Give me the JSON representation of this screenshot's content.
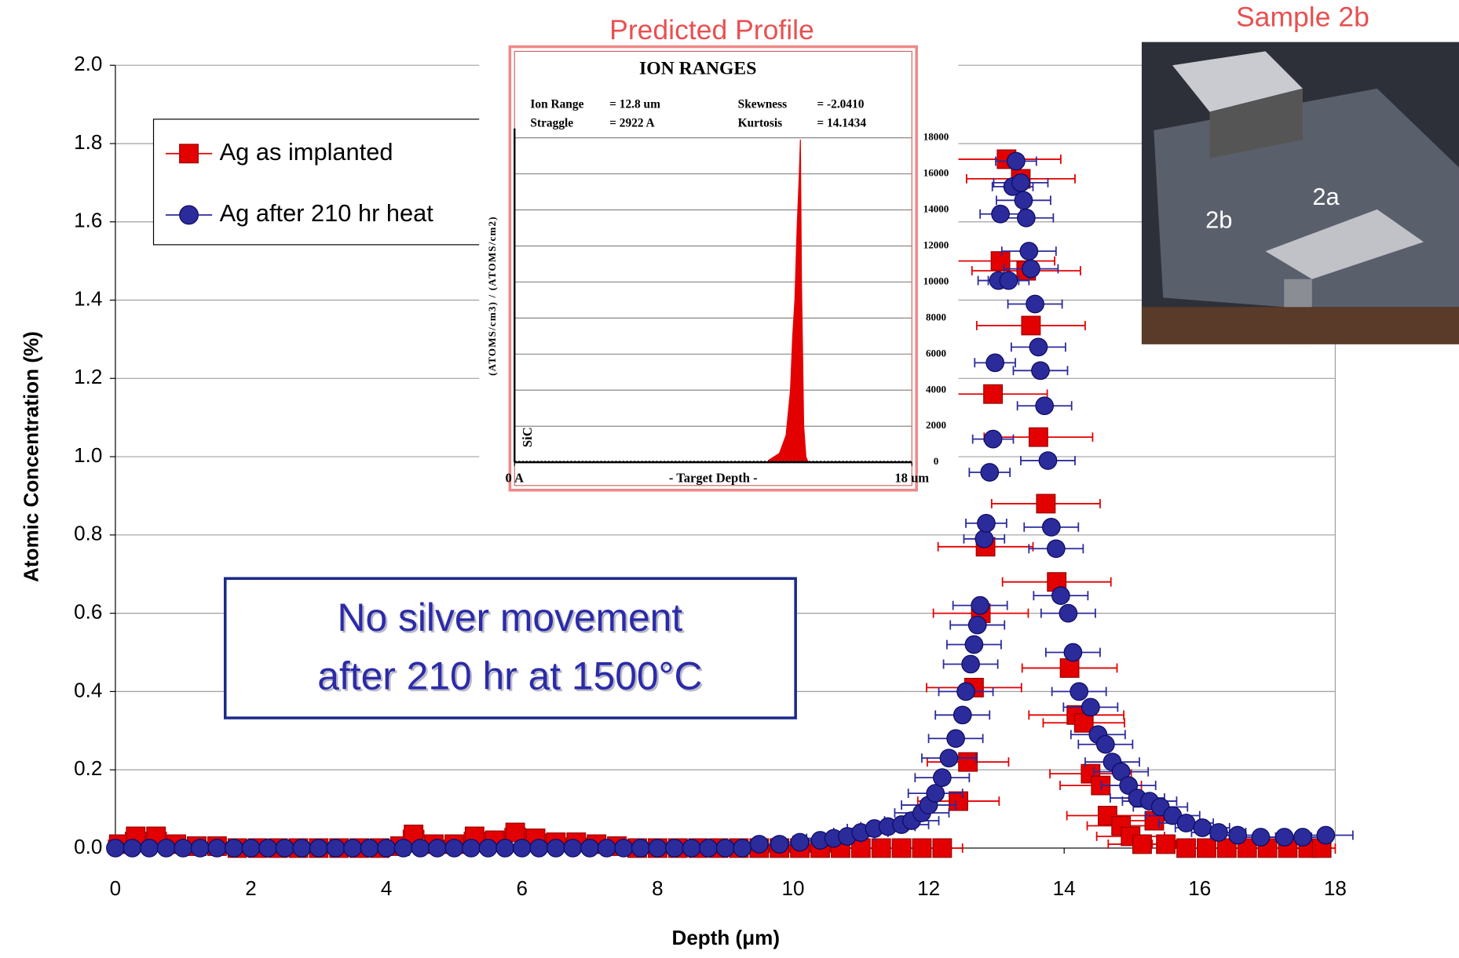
{
  "chart_data": [
    {
      "type": "scatter",
      "xlabel": "Depth (μm)",
      "ylabel": "Atomic Concentration (%)",
      "annotation": [
        "No silver movement",
        "after 210 hr at 1500°C"
      ],
      "xlim": [
        0,
        18
      ],
      "ylim": [
        0,
        2
      ],
      "xticks": [
        0,
        2,
        4,
        6,
        8,
        10,
        12,
        14,
        16,
        18
      ],
      "yticks": [
        {
          "value": 0,
          "label": "0.0"
        },
        {
          "value": 0.2,
          "label": "0.2"
        },
        {
          "value": 0.4,
          "label": "0.4"
        },
        {
          "value": 0.6,
          "label": "0.6"
        },
        {
          "value": 0.8,
          "label": "0.8"
        },
        {
          "value": 1,
          "label": "1.0"
        },
        {
          "value": 1.2,
          "label": "1.2"
        },
        {
          "value": 1.4,
          "label": "1.4"
        },
        {
          "value": 1.6,
          "label": "1.6"
        },
        {
          "value": 1.8,
          "label": "1.8"
        },
        {
          "value": 2,
          "label": "2.0"
        }
      ],
      "grid": true,
      "legend": "upper-left",
      "series": [
        {
          "name": "Ag as implanted",
          "color": "#e30000",
          "marker": "square",
          "x": [
            0.05,
            0.3,
            0.6,
            0.9,
            1.2,
            1.5,
            1.8,
            2.1,
            2.4,
            2.7,
            3.0,
            3.3,
            3.6,
            3.9,
            4.2,
            4.4,
            4.7,
            5.0,
            5.3,
            5.6,
            5.9,
            6.2,
            6.5,
            6.8,
            7.1,
            7.4,
            7.7,
            8.0,
            8.3,
            8.6,
            8.9,
            9.2,
            9.5,
            9.8,
            10.1,
            10.4,
            10.7,
            11.0,
            11.3,
            11.6,
            11.9,
            12.2,
            12.44,
            12.58,
            12.67,
            12.77,
            12.84,
            12.95,
            13.06,
            13.15,
            13.36,
            13.44,
            13.51,
            13.62,
            13.73,
            13.89,
            14.08,
            14.18,
            14.29,
            14.39,
            14.54,
            14.64,
            14.84,
            14.98,
            15.15,
            15.33,
            15.5,
            15.8,
            16.1,
            16.4,
            16.7,
            17.0,
            17.3,
            17.6,
            17.8
          ],
          "values": [
            0.01,
            0.03,
            0.03,
            0.01,
            0.005,
            0.005,
            0,
            0,
            0,
            0,
            0,
            0,
            0,
            0,
            0.005,
            0.035,
            0.01,
            0.01,
            0.03,
            0.02,
            0.04,
            0.025,
            0.015,
            0.015,
            0.01,
            0.005,
            0,
            0,
            0,
            0,
            0,
            0,
            0,
            0,
            0,
            0,
            0,
            0,
            0,
            0,
            0,
            0,
            0.12,
            0.22,
            0.41,
            0.6,
            0.77,
            1.16,
            1.5,
            1.76,
            1.71,
            1.475,
            1.335,
            1.05,
            0.88,
            0.68,
            0.46,
            0.34,
            0.32,
            0.19,
            0.16,
            0.083,
            0.057,
            0.03,
            0.01,
            0.07,
            0.01,
            0,
            0,
            0,
            0,
            0,
            0,
            0,
            0
          ],
          "xerr": [
            0.15,
            0.15,
            0.15,
            0.15,
            0.15,
            0.15,
            0.15,
            0.15,
            0.15,
            0.15,
            0.15,
            0.15,
            0.15,
            0.15,
            0.15,
            0.15,
            0.15,
            0.15,
            0.15,
            0.15,
            0.15,
            0.15,
            0.15,
            0.15,
            0.15,
            0.15,
            0.15,
            0.15,
            0.15,
            0.15,
            0.15,
            0.15,
            0.15,
            0.15,
            0.15,
            0.15,
            0.3,
            0.3,
            0.3,
            0.3,
            0.3,
            0.3,
            0.6,
            0.6,
            0.7,
            0.7,
            0.7,
            0.8,
            0.8,
            0.8,
            0.8,
            0.8,
            0.8,
            0.8,
            0.8,
            0.8,
            0.7,
            0.7,
            0.6,
            0.6,
            0.6,
            0.6,
            0.5,
            0.5,
            0.5,
            0.5,
            0.2,
            0.2,
            0.2,
            0.2,
            0.2,
            0.2,
            0.2,
            0.2,
            0.2
          ]
        },
        {
          "name": "Ag after 210 hr heat",
          "color": "#2b2b9c",
          "marker": "circle",
          "x": [
            0,
            0.25,
            0.5,
            0.75,
            1,
            1.25,
            1.5,
            1.75,
            2,
            2.25,
            2.5,
            2.75,
            3,
            3.25,
            3.5,
            3.75,
            4,
            4.25,
            4.5,
            4.75,
            5,
            5.25,
            5.5,
            5.75,
            6,
            6.25,
            6.5,
            6.75,
            7,
            7.25,
            7.5,
            7.75,
            8,
            8.25,
            8.5,
            8.75,
            9,
            9.25,
            9.5,
            9.8,
            10.1,
            10.4,
            10.6,
            10.8,
            11.0,
            11.2,
            11.4,
            11.6,
            11.75,
            11.9,
            12.0,
            12.1,
            12.2,
            12.3,
            12.4,
            12.5,
            12.55,
            12.62,
            12.67,
            12.72,
            12.76,
            12.82,
            12.85,
            12.9,
            12.95,
            12.98,
            13.03,
            13.06,
            13.18,
            13.24,
            13.29,
            13.36,
            13.4,
            13.44,
            13.48,
            13.51,
            13.57,
            13.62,
            13.65,
            13.71,
            13.76,
            13.81,
            13.88,
            13.95,
            14.06,
            14.13,
            14.22,
            14.39,
            14.5,
            14.61,
            14.71,
            14.84,
            14.95,
            15.08,
            15.26,
            15.42,
            15.6,
            15.8,
            16.04,
            16.28,
            16.56,
            16.9,
            17.25,
            17.52,
            17.86
          ],
          "values": [
            0,
            0,
            0,
            0,
            0,
            0,
            0,
            0,
            0,
            0,
            0,
            0,
            0,
            0,
            0,
            0,
            0,
            0,
            0,
            0,
            0,
            0,
            0,
            0,
            0,
            0,
            0,
            0,
            0,
            0,
            0,
            0,
            0,
            0,
            0,
            0,
            0,
            0,
            0.01,
            0.01,
            0.015,
            0.02,
            0.025,
            0.03,
            0.04,
            0.05,
            0.055,
            0.06,
            0.07,
            0.09,
            0.11,
            0.14,
            0.18,
            0.23,
            0.28,
            0.34,
            0.4,
            0.47,
            0.52,
            0.57,
            0.62,
            0.79,
            0.83,
            0.96,
            1.045,
            1.24,
            1.45,
            1.62,
            1.45,
            1.69,
            1.755,
            1.7,
            1.655,
            1.61,
            1.525,
            1.48,
            1.39,
            1.28,
            1.22,
            1.13,
            0.99,
            0.82,
            0.765,
            0.645,
            0.6,
            0.5,
            0.4,
            0.36,
            0.29,
            0.265,
            0.22,
            0.195,
            0.16,
            0.128,
            0.12,
            0.105,
            0.083,
            0.064,
            0.052,
            0.04,
            0.033,
            0.028,
            0.028,
            0.028,
            0.033
          ],
          "xerr": [
            0.05,
            0.05,
            0.05,
            0.05,
            0.05,
            0.05,
            0.05,
            0.05,
            0.05,
            0.05,
            0.05,
            0.05,
            0.05,
            0.05,
            0.05,
            0.05,
            0.05,
            0.05,
            0.05,
            0.05,
            0.05,
            0.05,
            0.05,
            0.05,
            0.05,
            0.05,
            0.05,
            0.05,
            0.05,
            0.05,
            0.05,
            0.05,
            0.05,
            0.05,
            0.05,
            0.05,
            0.05,
            0.05,
            0.4,
            0.4,
            0.4,
            0.4,
            0.4,
            0.4,
            0.4,
            0.4,
            0.4,
            0.4,
            0.4,
            0.4,
            0.4,
            0.4,
            0.4,
            0.4,
            0.4,
            0.4,
            0.4,
            0.4,
            0.4,
            0.4,
            0.4,
            0.3,
            0.3,
            0.3,
            0.3,
            0.3,
            0.3,
            0.3,
            0.3,
            0.3,
            0.3,
            0.4,
            0.4,
            0.4,
            0.4,
            0.4,
            0.4,
            0.4,
            0.4,
            0.4,
            0.4,
            0.4,
            0.4,
            0.4,
            0.4,
            0.4,
            0.4,
            0.4,
            0.4,
            0.4,
            0.4,
            0.4,
            0.4,
            0.4,
            0.4,
            0.4,
            0.4,
            0.4,
            0.4,
            0.4,
            0.4,
            0.4,
            0.4,
            0.4,
            0.4
          ]
        }
      ]
    },
    {
      "type": "area",
      "caption": "Predicted Profile",
      "title": "ION RANGES",
      "stats": [
        {
          "name": "Ion Range",
          "value": "= 12.8 um"
        },
        {
          "name": "Straggle",
          "value": "= 2922 A"
        },
        {
          "name": "Skewness",
          "value": "= -2.0410"
        },
        {
          "name": "Kurtosis",
          "value": "= 14.1434"
        }
      ],
      "xlabel": "- Target Depth -",
      "ylabel": "(ATOMS/cm3) / (ATOMS/cm2)",
      "material": "SiC",
      "color": "#e30000",
      "xlim": [
        0,
        18
      ],
      "ylim": [
        0,
        18000
      ],
      "xticks": [
        {
          "value": 0,
          "label": "0 A"
        },
        {
          "value": 18,
          "label": "18 um"
        }
      ],
      "yticks": [
        0,
        2000,
        4000,
        6000,
        8000,
        10000,
        12000,
        14000,
        16000,
        18000
      ],
      "grid": true,
      "x": [
        11.5,
        12.0,
        12.3,
        12.5,
        12.6,
        12.7,
        12.8,
        12.9,
        12.95,
        13.0,
        13.1,
        13.2,
        13.3
      ],
      "values": [
        100,
        500,
        1500,
        4000,
        7000,
        9000,
        13000,
        16000,
        17900,
        10000,
        2000,
        300,
        0
      ]
    }
  ],
  "photo": {
    "title": "Sample 2b",
    "labels": [
      "2a",
      "2b"
    ]
  }
}
